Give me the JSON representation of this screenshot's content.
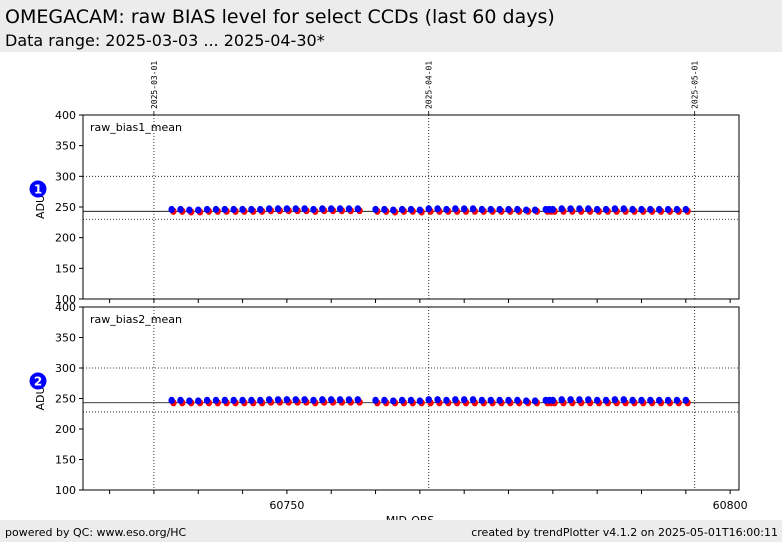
{
  "header": {
    "title": "OMEGACAM: raw BIAS level for select CCDs (last 60 days)",
    "subtitle": "Data range: 2025-03-03 ... 2025-04-30*"
  },
  "footer": {
    "left": "powered by QC: www.eso.org/HC",
    "right": "created by trendPlotter v4.1.2 on 2025-05-01T16:00:11"
  },
  "colors": {
    "series_a": "#0000ff",
    "series_b": "#ff0000",
    "badge": "#0000ff",
    "header_bg": "#ececec"
  },
  "chart_data": [
    {
      "type": "scatter",
      "panel_badge": "1",
      "label": "raw_bias1_mean",
      "ylabel": "ADU",
      "xlabel": "",
      "ylim": [
        100,
        400
      ],
      "yticks": [
        100,
        150,
        200,
        250,
        300,
        350,
        400
      ],
      "xlim": [
        60727,
        60801
      ],
      "xticks": [
        60750,
        60800
      ],
      "reference_lines": [
        230,
        243
      ],
      "dotted_grid_y": [
        300
      ],
      "date_markers": [
        {
          "mjd": 60735,
          "label": "2025-03-01"
        },
        {
          "mjd": 60766,
          "label": "2025-04-01"
        },
        {
          "mjd": 60796,
          "label": "2025-05-01"
        }
      ],
      "series": [
        {
          "color": "#ff0000",
          "x": [
            60737.2,
            60738.2,
            60739.2,
            60740.2,
            60741.2,
            60742.2,
            60743.2,
            60744.2,
            60745.2,
            60746.2,
            60747.2,
            60748.2,
            60749.2,
            60750.2,
            60751.2,
            60752.2,
            60753.2,
            60754.2,
            60755.2,
            60756.2,
            60757.2,
            60758.2,
            60760.2,
            60761.2,
            60762.2,
            60763.2,
            60764.2,
            60765.2,
            60766.2,
            60767.2,
            60768.2,
            60769.2,
            60770.2,
            60771.2,
            60772.2,
            60773.2,
            60774.2,
            60775.2,
            60776.2,
            60777.2,
            60778.2,
            60779.4,
            60779.8,
            60780.2,
            60781.2,
            60782.2,
            60783.2,
            60784.2,
            60785.2,
            60786.2,
            60787.2,
            60788.2,
            60789.2,
            60790.2,
            60791.2,
            60792.2,
            60793.2,
            60794.2,
            60795.2
          ],
          "y": [
            243,
            243,
            242,
            242,
            243,
            243,
            243,
            243,
            243,
            243,
            243,
            244,
            244,
            244,
            244,
            244,
            243,
            244,
            244,
            244,
            244,
            244,
            243,
            243,
            242,
            243,
            243,
            242,
            243,
            243,
            243,
            243,
            243,
            243,
            243,
            243,
            243,
            243,
            243,
            243,
            243,
            243,
            243,
            243,
            243,
            243,
            243,
            243,
            243,
            243,
            243,
            243,
            243,
            243,
            243,
            243,
            243,
            243,
            243
          ]
        },
        {
          "color": "#0000ff",
          "x": [
            60737,
            60738,
            60739,
            60740,
            60741,
            60742,
            60743,
            60744,
            60745,
            60746,
            60747,
            60748,
            60749,
            60750,
            60751,
            60752,
            60753,
            60754,
            60755,
            60756,
            60757,
            60758,
            60760,
            60761,
            60762,
            60763,
            60764,
            60765,
            60766,
            60767,
            60768,
            60769,
            60770,
            60771,
            60772,
            60773,
            60774,
            60775,
            60776,
            60777,
            60778,
            60779.2,
            60779.6,
            60780,
            60781,
            60782,
            60783,
            60784,
            60785,
            60786,
            60787,
            60788,
            60789,
            60790,
            60791,
            60792,
            60793,
            60794,
            60795
          ],
          "y": [
            246,
            246,
            245,
            245,
            246,
            246,
            246,
            246,
            246,
            246,
            246,
            247,
            247,
            247,
            247,
            247,
            246,
            247,
            247,
            247,
            247,
            247,
            246,
            246,
            245,
            246,
            246,
            245,
            247,
            247,
            246,
            247,
            247,
            247,
            246,
            246,
            246,
            246,
            246,
            245,
            245,
            246,
            246,
            246,
            247,
            247,
            247,
            247,
            246,
            246,
            247,
            247,
            246,
            246,
            246,
            246,
            246,
            246,
            246
          ]
        }
      ]
    },
    {
      "type": "scatter",
      "panel_badge": "2",
      "label": "raw_bias2_mean",
      "ylabel": "ADU",
      "xlabel": "MJD-OBS",
      "ylim": [
        100,
        400
      ],
      "yticks": [
        100,
        150,
        200,
        250,
        300,
        350,
        400
      ],
      "xlim": [
        60727,
        60801
      ],
      "xticks": [
        60750,
        60800
      ],
      "reference_lines": [
        228,
        243
      ],
      "dotted_grid_y": [
        300
      ],
      "date_markers": [
        {
          "mjd": 60735,
          "label": ""
        },
        {
          "mjd": 60766,
          "label": ""
        },
        {
          "mjd": 60796,
          "label": ""
        }
      ],
      "series": [
        {
          "color": "#ff0000",
          "x": [
            60737.2,
            60738.2,
            60739.2,
            60740.2,
            60741.2,
            60742.2,
            60743.2,
            60744.2,
            60745.2,
            60746.2,
            60747.2,
            60748.2,
            60749.2,
            60750.2,
            60751.2,
            60752.2,
            60753.2,
            60754.2,
            60755.2,
            60756.2,
            60757.2,
            60758.2,
            60760.2,
            60761.2,
            60762.2,
            60763.2,
            60764.2,
            60765.2,
            60766.2,
            60767.2,
            60768.2,
            60769.2,
            60770.2,
            60771.2,
            60772.2,
            60773.2,
            60774.2,
            60775.2,
            60776.2,
            60777.2,
            60778.2,
            60779.4,
            60779.8,
            60780.2,
            60781.2,
            60782.2,
            60783.2,
            60784.2,
            60785.2,
            60786.2,
            60787.2,
            60788.2,
            60789.2,
            60790.2,
            60791.2,
            60792.2,
            60793.2,
            60794.2,
            60795.2
          ],
          "y": [
            243,
            243,
            243,
            243,
            243,
            243,
            243,
            243,
            243,
            243,
            243,
            244,
            244,
            244,
            244,
            244,
            243,
            244,
            244,
            244,
            244,
            244,
            243,
            243,
            243,
            243,
            243,
            243,
            243,
            243,
            243,
            243,
            243,
            243,
            243,
            243,
            243,
            243,
            243,
            243,
            243,
            243,
            243,
            243,
            243,
            243,
            243,
            243,
            243,
            243,
            243,
            243,
            243,
            243,
            243,
            243,
            243,
            243,
            243
          ]
        },
        {
          "color": "#0000ff",
          "x": [
            60737,
            60738,
            60739,
            60740,
            60741,
            60742,
            60743,
            60744,
            60745,
            60746,
            60747,
            60748,
            60749,
            60750,
            60751,
            60752,
            60753,
            60754,
            60755,
            60756,
            60757,
            60758,
            60760,
            60761,
            60762,
            60763,
            60764,
            60765,
            60766,
            60767,
            60768,
            60769,
            60770,
            60771,
            60772,
            60773,
            60774,
            60775,
            60776,
            60777,
            60778,
            60779.2,
            60779.6,
            60780,
            60781,
            60782,
            60783,
            60784,
            60785,
            60786,
            60787,
            60788,
            60789,
            60790,
            60791,
            60792,
            60793,
            60794,
            60795
          ],
          "y": [
            247,
            247,
            246,
            246,
            247,
            247,
            247,
            247,
            247,
            247,
            247,
            248,
            248,
            248,
            248,
            248,
            247,
            248,
            248,
            248,
            248,
            248,
            247,
            247,
            246,
            247,
            247,
            246,
            248,
            248,
            247,
            248,
            248,
            248,
            247,
            247,
            247,
            247,
            247,
            246,
            246,
            247,
            247,
            247,
            248,
            248,
            248,
            248,
            247,
            247,
            248,
            248,
            247,
            247,
            247,
            247,
            247,
            247,
            247
          ]
        }
      ]
    }
  ]
}
